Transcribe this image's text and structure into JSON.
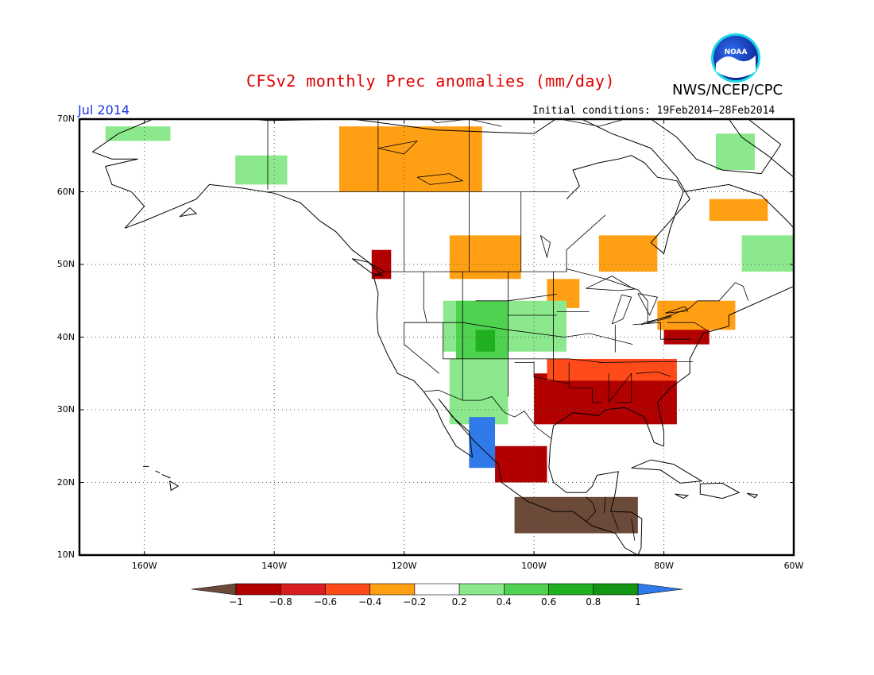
{
  "header": {
    "title": "CFSv2 monthly Prec anomalies (mm/day)",
    "agency": "NWS/NCEP/CPC",
    "month": "Jul 2014",
    "initial_conditions": "Initial conditions: 19Feb2014–28Feb2014"
  },
  "logo": {
    "text": "NOAA",
    "icon": "noaa-logo-icon"
  },
  "axes": {
    "lat_labels": [
      "70N",
      "60N",
      "50N",
      "40N",
      "30N",
      "20N",
      "10N"
    ],
    "lon_labels": [
      "160W",
      "140W",
      "120W",
      "100W",
      "80W",
      "60W"
    ]
  },
  "colorbar": {
    "labels": [
      "−1",
      "−0.8",
      "−0.6",
      "−0.4",
      "−0.2",
      "0.2",
      "0.4",
      "0.6",
      "0.8",
      "1"
    ],
    "colors": [
      "#6b4a3a",
      "#b20000",
      "#d81e1e",
      "#ff4a1a",
      "#ff9f14",
      "#ffffff",
      "#8ce88c",
      "#4fd24f",
      "#20b020",
      "#129612",
      "#2f7ae8"
    ]
  },
  "map": {
    "domain": {
      "lon": [
        -170,
        -60
      ],
      "lat": [
        10,
        70
      ]
    },
    "background": "#ffffff",
    "grid": "dotted",
    "anomaly_regions": [
      {
        "category": "dry-strong",
        "lon": [
          -98,
          -83
        ],
        "lat": [
          29,
          34
        ],
        "color": "#6b4a3a"
      },
      {
        "category": "dry-strong",
        "lon": [
          -103,
          -84
        ],
        "lat": [
          13,
          18
        ],
        "color": "#6b4a3a"
      },
      {
        "category": "dry",
        "lon": [
          -100,
          -78
        ],
        "lat": [
          28,
          35
        ],
        "color": "#b20000"
      },
      {
        "category": "dry",
        "lon": [
          -80,
          -73
        ],
        "lat": [
          39,
          42
        ],
        "color": "#b20000"
      },
      {
        "category": "dry",
        "lon": [
          -106,
          -98
        ],
        "lat": [
          20,
          25
        ],
        "color": "#b20000"
      },
      {
        "category": "dry",
        "lon": [
          -112,
          -109
        ],
        "lat": [
          50,
          53
        ],
        "color": "#d81e1e"
      },
      {
        "category": "dry",
        "lon": [
          -125,
          -122
        ],
        "lat": [
          48,
          52
        ],
        "color": "#b20000"
      },
      {
        "category": "dry-moderate",
        "lon": [
          -98,
          -78
        ],
        "lat": [
          34,
          37
        ],
        "color": "#ff4a1a"
      },
      {
        "category": "dry-light",
        "lon": [
          -130,
          -108
        ],
        "lat": [
          60,
          69
        ],
        "color": "#ff9f14"
      },
      {
        "category": "dry-light",
        "lon": [
          -113,
          -102
        ],
        "lat": [
          48,
          54
        ],
        "color": "#ff9f14"
      },
      {
        "category": "dry-light",
        "lon": [
          -90,
          -81
        ],
        "lat": [
          49,
          54
        ],
        "color": "#ff9f14"
      },
      {
        "category": "dry-light",
        "lon": [
          -98,
          -93
        ],
        "lat": [
          44,
          48
        ],
        "color": "#ff9f14"
      },
      {
        "category": "dry-light",
        "lon": [
          -81,
          -69
        ],
        "lat": [
          41,
          45
        ],
        "color": "#ff9f14"
      },
      {
        "category": "dry-light",
        "lon": [
          -73,
          -64
        ],
        "lat": [
          56,
          59
        ],
        "color": "#ff9f14"
      },
      {
        "category": "wet-light",
        "lon": [
          -114,
          -95
        ],
        "lat": [
          38,
          45
        ],
        "color": "#8ce88c"
      },
      {
        "category": "wet-moderate",
        "lon": [
          -112,
          -104
        ],
        "lat": [
          37,
          45
        ],
        "color": "#4fd24f"
      },
      {
        "category": "wet-strong",
        "lon": [
          -109,
          -106
        ],
        "lat": [
          38,
          41
        ],
        "color": "#20b020"
      },
      {
        "category": "wet-light",
        "lon": [
          -113,
          -104
        ],
        "lat": [
          28,
          37
        ],
        "color": "#8ce88c"
      },
      {
        "category": "wet-extreme",
        "lon": [
          -110,
          -106
        ],
        "lat": [
          22,
          29
        ],
        "color": "#2f7ae8"
      },
      {
        "category": "wet-light",
        "lon": [
          -68,
          -60
        ],
        "lat": [
          49,
          54
        ],
        "color": "#8ce88c"
      },
      {
        "category": "wet-light",
        "lon": [
          -166,
          -156
        ],
        "lat": [
          67,
          69
        ],
        "color": "#8ce88c"
      },
      {
        "category": "wet-light",
        "lon": [
          -146,
          -138
        ],
        "lat": [
          61,
          65
        ],
        "color": "#8ce88c"
      },
      {
        "category": "wet-light",
        "lon": [
          -72,
          -66
        ],
        "lat": [
          63,
          68
        ],
        "color": "#8ce88c"
      }
    ]
  }
}
